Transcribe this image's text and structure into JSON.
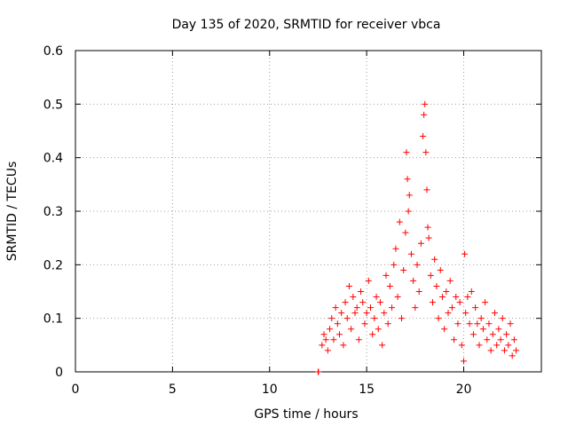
{
  "chart_data": {
    "type": "scatter",
    "title": "Day 135 of 2020, SRMTID for receiver vbca",
    "xlabel": "GPS time / hours",
    "ylabel": "SRMTID / TECUs",
    "xlim": [
      0,
      24
    ],
    "ylim": [
      0,
      0.6
    ],
    "xticks": [
      0,
      5,
      10,
      15,
      20
    ],
    "yticks": [
      0,
      0.1,
      0.2,
      0.3,
      0.4,
      0.5,
      0.6
    ],
    "xtick_labels": [
      "0",
      "5",
      "10",
      "15",
      "20"
    ],
    "ytick_labels": [
      "0",
      "0.1",
      "0.2",
      "0.3",
      "0.4",
      "0.5",
      "0.6"
    ],
    "grid": true,
    "marker": "plus",
    "colors": {
      "series": "#ff0000",
      "axes": "#000000",
      "grid": "#a0a0a0"
    },
    "series": [
      {
        "name": "SRMTID",
        "points": [
          [
            12.5,
            0.0
          ],
          [
            12.52,
            0.0
          ],
          [
            12.7,
            0.05
          ],
          [
            12.8,
            0.07
          ],
          [
            12.9,
            0.06
          ],
          [
            13.0,
            0.04
          ],
          [
            13.1,
            0.08
          ],
          [
            13.2,
            0.1
          ],
          [
            13.3,
            0.06
          ],
          [
            13.4,
            0.12
          ],
          [
            13.5,
            0.09
          ],
          [
            13.6,
            0.07
          ],
          [
            13.7,
            0.11
          ],
          [
            13.8,
            0.05
          ],
          [
            13.9,
            0.13
          ],
          [
            14.0,
            0.1
          ],
          [
            14.1,
            0.16
          ],
          [
            14.2,
            0.08
          ],
          [
            14.3,
            0.14
          ],
          [
            14.4,
            0.11
          ],
          [
            14.5,
            0.12
          ],
          [
            14.6,
            0.06
          ],
          [
            14.7,
            0.15
          ],
          [
            14.8,
            0.13
          ],
          [
            14.9,
            0.09
          ],
          [
            15.0,
            0.11
          ],
          [
            15.1,
            0.17
          ],
          [
            15.2,
            0.12
          ],
          [
            15.3,
            0.07
          ],
          [
            15.4,
            0.1
          ],
          [
            15.5,
            0.14
          ],
          [
            15.6,
            0.08
          ],
          [
            15.7,
            0.13
          ],
          [
            15.8,
            0.05
          ],
          [
            15.9,
            0.11
          ],
          [
            16.0,
            0.18
          ],
          [
            16.1,
            0.09
          ],
          [
            16.2,
            0.16
          ],
          [
            16.3,
            0.12
          ],
          [
            16.4,
            0.2
          ],
          [
            16.5,
            0.23
          ],
          [
            16.6,
            0.14
          ],
          [
            16.7,
            0.28
          ],
          [
            16.8,
            0.1
          ],
          [
            16.9,
            0.19
          ],
          [
            17.0,
            0.26
          ],
          [
            17.05,
            0.41
          ],
          [
            17.1,
            0.36
          ],
          [
            17.15,
            0.3
          ],
          [
            17.2,
            0.33
          ],
          [
            17.3,
            0.22
          ],
          [
            17.4,
            0.17
          ],
          [
            17.5,
            0.12
          ],
          [
            17.6,
            0.2
          ],
          [
            17.7,
            0.15
          ],
          [
            17.8,
            0.24
          ],
          [
            17.9,
            0.44
          ],
          [
            17.95,
            0.48
          ],
          [
            18.0,
            0.5
          ],
          [
            18.05,
            0.41
          ],
          [
            18.1,
            0.34
          ],
          [
            18.15,
            0.27
          ],
          [
            18.2,
            0.25
          ],
          [
            18.3,
            0.18
          ],
          [
            18.4,
            0.13
          ],
          [
            18.5,
            0.21
          ],
          [
            18.6,
            0.16
          ],
          [
            18.7,
            0.1
          ],
          [
            18.8,
            0.19
          ],
          [
            18.9,
            0.14
          ],
          [
            19.0,
            0.08
          ],
          [
            19.1,
            0.15
          ],
          [
            19.2,
            0.11
          ],
          [
            19.3,
            0.17
          ],
          [
            19.4,
            0.12
          ],
          [
            19.5,
            0.06
          ],
          [
            19.6,
            0.14
          ],
          [
            19.7,
            0.09
          ],
          [
            19.8,
            0.13
          ],
          [
            19.9,
            0.05
          ],
          [
            20.0,
            0.02
          ],
          [
            20.05,
            0.22
          ],
          [
            20.1,
            0.11
          ],
          [
            20.2,
            0.14
          ],
          [
            20.3,
            0.09
          ],
          [
            20.4,
            0.15
          ],
          [
            20.5,
            0.07
          ],
          [
            20.6,
            0.12
          ],
          [
            20.7,
            0.09
          ],
          [
            20.8,
            0.05
          ],
          [
            20.9,
            0.1
          ],
          [
            21.0,
            0.08
          ],
          [
            21.1,
            0.13
          ],
          [
            21.2,
            0.06
          ],
          [
            21.3,
            0.09
          ],
          [
            21.4,
            0.04
          ],
          [
            21.5,
            0.07
          ],
          [
            21.6,
            0.11
          ],
          [
            21.7,
            0.05
          ],
          [
            21.8,
            0.08
          ],
          [
            21.9,
            0.06
          ],
          [
            22.0,
            0.1
          ],
          [
            22.1,
            0.04
          ],
          [
            22.2,
            0.07
          ],
          [
            22.3,
            0.05
          ],
          [
            22.4,
            0.09
          ],
          [
            22.5,
            0.03
          ],
          [
            22.6,
            0.06
          ],
          [
            22.7,
            0.04
          ]
        ]
      }
    ]
  }
}
